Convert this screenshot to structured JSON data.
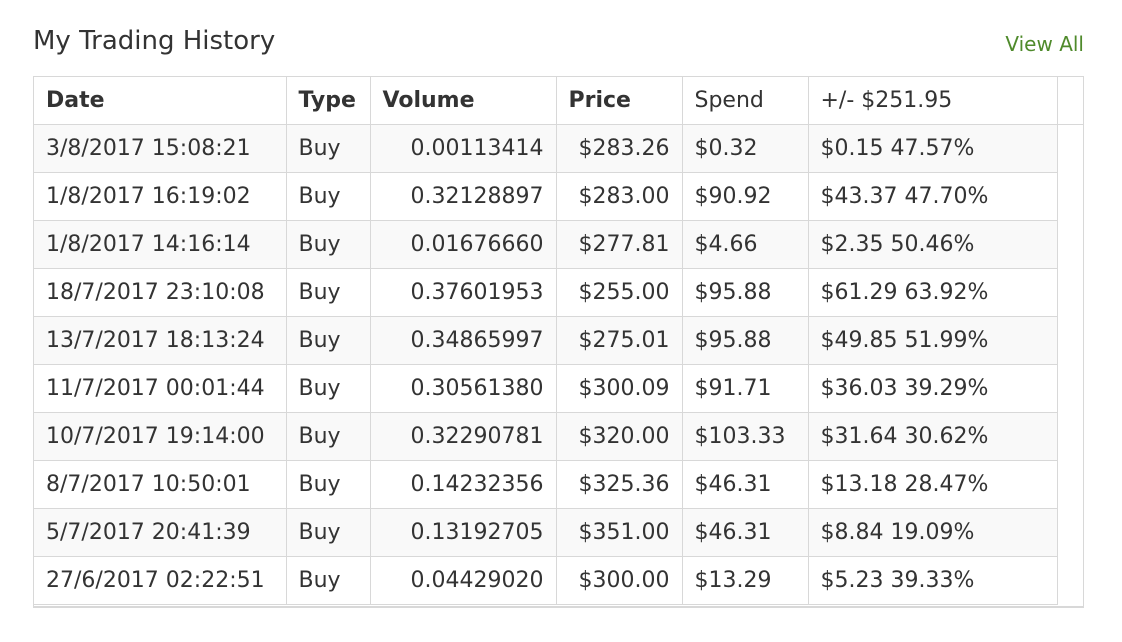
{
  "panel": {
    "title": "My Trading History",
    "view_all_label": "View All",
    "accent_color": "#4f8a2b"
  },
  "table": {
    "headers": {
      "date": "Date",
      "type": "Type",
      "volume": "Volume",
      "price": "Price",
      "spend": "Spend",
      "pl": "+/- $251.95"
    },
    "rows": [
      {
        "date": "3/8/2017 15:08:21",
        "type": "Buy",
        "volume": "0.00113414",
        "price": "$283.26",
        "spend": "$0.32",
        "pl": "$0.15 47.57%"
      },
      {
        "date": "1/8/2017 16:19:02",
        "type": "Buy",
        "volume": "0.32128897",
        "price": "$283.00",
        "spend": "$90.92",
        "pl": "$43.37 47.70%"
      },
      {
        "date": "1/8/2017 14:16:14",
        "type": "Buy",
        "volume": "0.01676660",
        "price": "$277.81",
        "spend": "$4.66",
        "pl": "$2.35 50.46%"
      },
      {
        "date": "18/7/2017 23:10:08",
        "type": "Buy",
        "volume": "0.37601953",
        "price": "$255.00",
        "spend": "$95.88",
        "pl": "$61.29 63.92%"
      },
      {
        "date": "13/7/2017 18:13:24",
        "type": "Buy",
        "volume": "0.34865997",
        "price": "$275.01",
        "spend": "$95.88",
        "pl": "$49.85 51.99%"
      },
      {
        "date": "11/7/2017 00:01:44",
        "type": "Buy",
        "volume": "0.30561380",
        "price": "$300.09",
        "spend": "$91.71",
        "pl": "$36.03 39.29%"
      },
      {
        "date": "10/7/2017 19:14:00",
        "type": "Buy",
        "volume": "0.32290781",
        "price": "$320.00",
        "spend": "$103.33",
        "pl": "$31.64 30.62%"
      },
      {
        "date": "8/7/2017 10:50:01",
        "type": "Buy",
        "volume": "0.14232356",
        "price": "$325.36",
        "spend": "$46.31",
        "pl": "$13.18 28.47%"
      },
      {
        "date": "5/7/2017 20:41:39",
        "type": "Buy",
        "volume": "0.13192705",
        "price": "$351.00",
        "spend": "$46.31",
        "pl": "$8.84 19.09%"
      },
      {
        "date": "27/6/2017 02:22:51",
        "type": "Buy",
        "volume": "0.04429020",
        "price": "$300.00",
        "spend": "$13.29",
        "pl": "$5.23 39.33%"
      }
    ]
  }
}
